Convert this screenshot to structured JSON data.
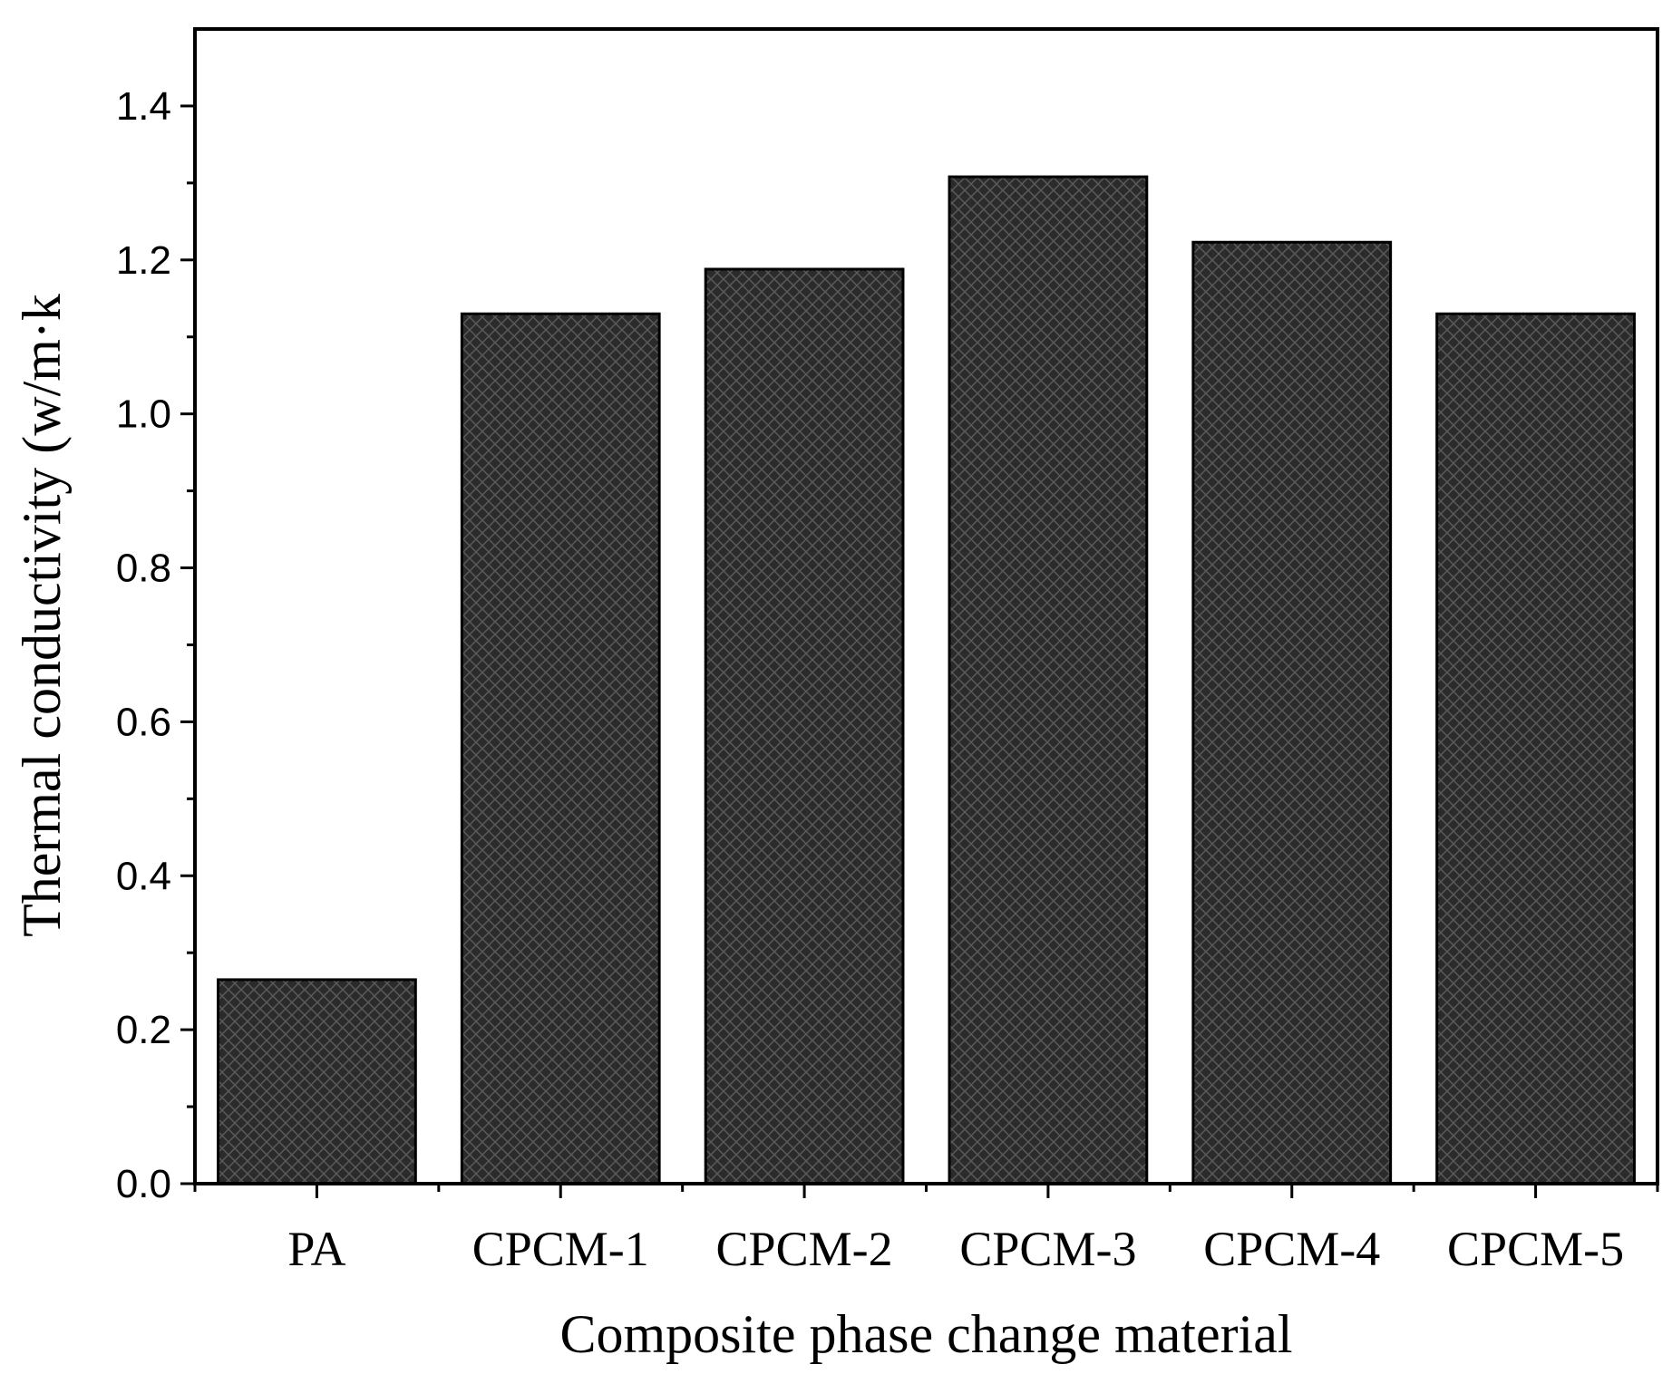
{
  "chart_data": {
    "type": "bar",
    "title": "",
    "xlabel": "Composite phase change material",
    "ylabel": "Thermal conductivity (w/m·k",
    "categories": [
      "PA",
      "CPCM-1",
      "CPCM-2",
      "CPCM-3",
      "CPCM-4",
      "CPCM-5"
    ],
    "values": [
      0.265,
      1.13,
      1.188,
      1.308,
      1.223,
      1.13
    ],
    "ylim": [
      0,
      1.5
    ],
    "yticks": [
      "0.0",
      "0.2",
      "0.4",
      "0.6",
      "0.8",
      "1.0",
      "1.2",
      "1.4"
    ],
    "grid": false,
    "legend": "none",
    "bar_color": "#2b2b2b",
    "hatch": "crosshatch"
  }
}
